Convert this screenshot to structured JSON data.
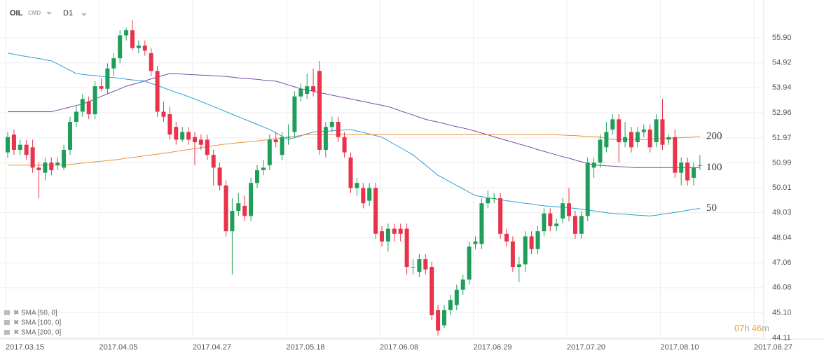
{
  "header": {
    "symbol": "OIL",
    "market": "CMD",
    "timeframe": "D1"
  },
  "timer": {
    "hours": "07",
    "h": "h",
    "minutes": "46",
    "m": "m"
  },
  "chart_data": {
    "type": "candlestick",
    "up_color": "#1e9e5a",
    "down_color": "#e8334a",
    "grid": true,
    "ylim": [
      43.79,
      57.39
    ],
    "yticks": [
      {
        "value": 55.9,
        "label": "55.90"
      },
      54.92,
      53.94,
      52.96,
      51.97,
      50.99,
      50.01,
      49.03,
      48.04,
      47.06,
      46.08,
      {
        "value": 45.1,
        "label": "45.10"
      },
      44.11
    ],
    "xticks": [
      {
        "value": 0,
        "label": "2017.03.15"
      },
      {
        "value": 15,
        "label": "2017.04.05"
      },
      {
        "value": 30,
        "label": "2017.04.27"
      },
      {
        "value": 45,
        "label": "2017.05.18"
      },
      {
        "value": 60,
        "label": "2017.06.08"
      },
      {
        "value": 75,
        "label": "2017.06.29"
      },
      {
        "value": 90,
        "label": "2017.07.20"
      },
      {
        "value": 105,
        "label": "2017.08.10"
      },
      {
        "value": 120,
        "label": "2017.08.27"
      }
    ],
    "candles": [
      [
        51.4,
        52.2,
        51.2,
        52.0
      ],
      [
        52.1,
        52.3,
        51.3,
        51.5
      ],
      [
        51.5,
        51.9,
        51.3,
        51.7
      ],
      [
        51.7,
        51.9,
        51.1,
        51.3
      ],
      [
        51.6,
        51.9,
        50.6,
        50.8
      ],
      [
        50.8,
        51.0,
        49.6,
        50.7
      ],
      [
        50.6,
        51.2,
        50.3,
        51.0
      ],
      [
        51.0,
        51.2,
        50.5,
        50.7
      ],
      [
        50.9,
        51.2,
        50.7,
        51.0
      ],
      [
        50.8,
        51.7,
        50.7,
        51.5
      ],
      [
        51.5,
        52.8,
        51.3,
        52.6
      ],
      [
        52.6,
        53.2,
        52.4,
        53.0
      ],
      [
        53.0,
        53.7,
        52.8,
        53.5
      ],
      [
        53.4,
        53.6,
        52.7,
        52.9
      ],
      [
        52.9,
        54.2,
        52.7,
        54.0
      ],
      [
        54.0,
        54.3,
        53.8,
        53.9
      ],
      [
        53.9,
        54.9,
        53.7,
        54.7
      ],
      [
        54.7,
        55.3,
        54.4,
        55.1
      ],
      [
        55.1,
        56.2,
        54.9,
        56.0
      ],
      [
        56.0,
        56.3,
        55.8,
        56.2
      ],
      [
        56.2,
        56.6,
        55.4,
        55.5
      ],
      [
        55.5,
        55.8,
        55.3,
        55.6
      ],
      [
        55.6,
        55.8,
        55.2,
        55.4
      ],
      [
        55.3,
        55.5,
        54.4,
        54.6
      ],
      [
        54.6,
        54.8,
        52.8,
        53.0
      ],
      [
        53.0,
        53.4,
        52.6,
        52.8
      ],
      [
        52.9,
        53.2,
        51.9,
        52.1
      ],
      [
        52.4,
        52.6,
        51.7,
        51.9
      ],
      [
        51.9,
        52.4,
        51.8,
        52.2
      ],
      [
        52.2,
        52.4,
        51.7,
        51.9
      ],
      [
        52.0,
        52.2,
        50.9,
        51.8
      ],
      [
        51.9,
        52.1,
        51.5,
        51.7
      ],
      [
        51.9,
        52.1,
        51.1,
        51.3
      ],
      [
        51.3,
        51.5,
        50.1,
        50.8
      ],
      [
        50.8,
        51.0,
        49.9,
        50.1
      ],
      [
        50.1,
        50.3,
        48.1,
        48.3
      ],
      [
        48.3,
        49.6,
        46.6,
        49.1
      ],
      [
        49.1,
        49.8,
        48.9,
        49.4
      ],
      [
        49.3,
        49.7,
        48.7,
        48.9
      ],
      [
        48.9,
        50.4,
        48.7,
        50.2
      ],
      [
        50.2,
        50.9,
        50.0,
        50.7
      ],
      [
        50.7,
        51.1,
        50.5,
        50.8
      ],
      [
        50.9,
        52.1,
        50.7,
        51.9
      ],
      [
        51.9,
        52.2,
        51.6,
        51.8
      ],
      [
        51.3,
        52.2,
        51.1,
        52.0
      ],
      [
        52.0,
        52.5,
        51.7,
        52.0
      ],
      [
        52.2,
        53.8,
        52.0,
        53.6
      ],
      [
        53.6,
        54.1,
        53.4,
        53.9
      ],
      [
        53.7,
        54.5,
        53.5,
        54.0
      ],
      [
        54.0,
        54.7,
        53.6,
        53.8
      ],
      [
        54.6,
        55.0,
        51.3,
        51.5
      ],
      [
        51.5,
        52.6,
        51.2,
        52.4
      ],
      [
        52.4,
        52.8,
        52.2,
        52.6
      ],
      [
        52.6,
        52.8,
        51.8,
        52.0
      ],
      [
        52.0,
        52.2,
        51.2,
        51.4
      ],
      [
        51.2,
        51.4,
        49.8,
        50.0
      ],
      [
        50.0,
        50.4,
        49.7,
        50.2
      ],
      [
        50.0,
        50.2,
        49.2,
        49.4
      ],
      [
        49.5,
        50.2,
        49.3,
        50.0
      ],
      [
        50.0,
        50.2,
        48.0,
        48.2
      ],
      [
        48.3,
        48.5,
        47.7,
        47.9
      ],
      [
        47.9,
        48.6,
        47.5,
        48.4
      ],
      [
        48.4,
        48.6,
        47.9,
        48.2
      ],
      [
        48.4,
        48.6,
        47.9,
        48.2
      ],
      [
        48.4,
        48.6,
        46.6,
        46.9
      ],
      [
        46.9,
        47.2,
        46.6,
        46.9
      ],
      [
        46.7,
        47.4,
        46.5,
        47.2
      ],
      [
        47.2,
        47.4,
        46.6,
        46.8
      ],
      [
        46.9,
        47.1,
        44.8,
        45.0
      ],
      [
        45.2,
        45.4,
        44.2,
        44.4
      ],
      [
        44.6,
        45.4,
        44.5,
        45.2
      ],
      [
        45.2,
        45.8,
        45.0,
        45.6
      ],
      [
        45.4,
        46.2,
        45.2,
        46.0
      ],
      [
        46.0,
        46.6,
        45.8,
        46.4
      ],
      [
        46.4,
        47.9,
        46.2,
        47.7
      ],
      [
        47.8,
        48.1,
        47.6,
        47.9
      ],
      [
        47.8,
        49.6,
        47.6,
        49.4
      ],
      [
        49.4,
        49.9,
        49.2,
        49.6
      ],
      [
        49.6,
        49.8,
        49.4,
        49.6
      ],
      [
        49.6,
        49.8,
        48.0,
        48.2
      ],
      [
        48.2,
        48.4,
        47.7,
        47.9
      ],
      [
        47.9,
        48.1,
        46.7,
        46.9
      ],
      [
        46.9,
        47.3,
        46.3,
        47.0
      ],
      [
        47.0,
        48.3,
        46.7,
        48.1
      ],
      [
        48.1,
        48.3,
        47.4,
        47.6
      ],
      [
        47.6,
        48.5,
        47.4,
        48.3
      ],
      [
        48.3,
        49.2,
        48.1,
        49.0
      ],
      [
        49.0,
        49.2,
        48.3,
        48.5
      ],
      [
        48.5,
        48.8,
        48.3,
        48.6
      ],
      [
        48.8,
        49.6,
        48.6,
        49.4
      ],
      [
        49.4,
        50.0,
        48.7,
        48.9
      ],
      [
        48.9,
        49.1,
        48.0,
        48.2
      ],
      [
        48.2,
        49.1,
        48.0,
        48.9
      ],
      [
        48.9,
        51.2,
        48.7,
        51.0
      ],
      [
        50.8,
        51.2,
        50.4,
        51.0
      ],
      [
        51.0,
        52.1,
        50.8,
        51.9
      ],
      [
        51.6,
        52.6,
        51.4,
        52.2
      ],
      [
        52.3,
        52.9,
        52.1,
        52.7
      ],
      [
        52.7,
        52.9,
        51.0,
        51.8
      ],
      [
        51.8,
        52.6,
        51.6,
        52.0
      ],
      [
        52.2,
        52.4,
        51.4,
        51.6
      ],
      [
        51.8,
        52.4,
        51.6,
        52.2
      ],
      [
        52.2,
        52.5,
        52.0,
        52.3
      ],
      [
        52.3,
        52.5,
        51.4,
        51.6
      ],
      [
        51.8,
        52.9,
        51.6,
        52.7
      ],
      [
        52.7,
        53.5,
        51.5,
        51.7
      ],
      [
        51.9,
        52.1,
        51.7,
        52.0
      ],
      [
        52.0,
        52.3,
        50.4,
        50.6
      ],
      [
        50.6,
        51.2,
        50.1,
        51.0
      ],
      [
        51.0,
        51.2,
        50.1,
        50.3
      ],
      [
        50.4,
        51.0,
        50.1,
        50.8
      ],
      [
        50.9,
        51.3,
        50.7,
        50.9
      ]
    ],
    "series": [
      {
        "name": "SMA [50, 0]",
        "label": "50",
        "color": "#2aa0d8",
        "values": [
          55.3,
          55.26,
          55.21,
          55.17,
          55.13,
          55.09,
          55.04,
          55.0,
          54.88,
          54.75,
          54.62,
          54.5,
          54.47,
          54.44,
          54.42,
          54.39,
          54.36,
          54.34,
          54.31,
          54.28,
          54.25,
          54.23,
          54.2,
          54.11,
          54.03,
          53.94,
          53.85,
          53.76,
          53.68,
          53.59,
          53.5,
          53.4,
          53.3,
          53.2,
          53.1,
          53.0,
          52.9,
          52.8,
          52.7,
          52.6,
          52.5,
          52.4,
          52.3,
          52.17,
          52.03,
          51.9,
          51.98,
          52.05,
          52.13,
          52.2,
          52.22,
          52.23,
          52.25,
          52.27,
          52.28,
          52.3,
          52.24,
          52.18,
          52.12,
          52.06,
          52.0,
          51.86,
          51.72,
          51.58,
          51.44,
          51.3,
          51.1,
          50.9,
          50.7,
          50.5,
          50.37,
          50.23,
          50.1,
          49.97,
          49.83,
          49.7,
          49.66,
          49.62,
          49.58,
          49.54,
          49.5,
          49.47,
          49.43,
          49.4,
          49.37,
          49.33,
          49.3,
          49.28,
          49.26,
          49.24,
          49.22,
          49.2,
          49.17,
          49.13,
          49.1,
          49.07,
          49.03,
          49.0,
          48.98,
          48.97,
          48.95,
          48.93,
          48.92,
          48.9,
          48.93,
          48.97,
          49.0,
          49.04,
          49.08,
          49.12,
          49.16,
          49.2
        ]
      },
      {
        "name": "SMA [100, 0]",
        "label": "100",
        "color": "#7b4aa8",
        "values": [
          53.0,
          53.0,
          53.0,
          53.0,
          53.0,
          53.0,
          53.0,
          53.0,
          53.06,
          53.12,
          53.18,
          53.24,
          53.3,
          53.4,
          53.5,
          53.6,
          53.7,
          53.8,
          53.9,
          54.0,
          54.07,
          54.14,
          54.21,
          54.29,
          54.36,
          54.43,
          54.5,
          54.49,
          54.48,
          54.46,
          54.45,
          54.44,
          54.43,
          54.41,
          54.4,
          54.38,
          54.36,
          54.33,
          54.31,
          54.29,
          54.27,
          54.24,
          54.22,
          54.2,
          54.13,
          54.05,
          53.98,
          53.9,
          53.85,
          53.8,
          53.75,
          53.7,
          53.65,
          53.6,
          53.55,
          53.5,
          53.45,
          53.4,
          53.35,
          53.3,
          53.25,
          53.2,
          53.12,
          53.03,
          52.95,
          52.87,
          52.78,
          52.7,
          52.64,
          52.59,
          52.53,
          52.47,
          52.41,
          52.36,
          52.3,
          52.23,
          52.16,
          52.09,
          52.01,
          51.94,
          51.87,
          51.8,
          51.73,
          51.66,
          51.59,
          51.51,
          51.44,
          51.37,
          51.3,
          51.23,
          51.17,
          51.1,
          51.03,
          50.97,
          50.9,
          50.89,
          50.87,
          50.86,
          50.84,
          50.83,
          50.81,
          50.8,
          50.8,
          50.8,
          50.8,
          50.8,
          50.8,
          50.8,
          50.8,
          50.8,
          50.8,
          50.8
        ]
      },
      {
        "name": "SMA [200, 0]",
        "label": "200",
        "color": "#e8913a",
        "values": [
          50.9,
          50.9,
          50.9,
          50.9,
          50.9,
          50.9,
          50.9,
          50.9,
          50.9,
          50.9,
          50.93,
          50.95,
          50.98,
          51.0,
          51.03,
          51.05,
          51.08,
          51.1,
          51.13,
          51.17,
          51.2,
          51.23,
          51.27,
          51.3,
          51.33,
          51.37,
          51.4,
          51.44,
          51.48,
          51.51,
          51.55,
          51.59,
          51.63,
          51.66,
          51.7,
          51.73,
          51.75,
          51.78,
          51.8,
          51.83,
          51.85,
          51.88,
          51.9,
          51.93,
          51.97,
          52.0,
          52.03,
          52.07,
          52.1,
          52.1,
          52.1,
          52.1,
          52.1,
          52.1,
          52.1,
          52.1,
          52.1,
          52.1,
          52.1,
          52.1,
          52.1,
          52.1,
          52.1,
          52.1,
          52.1,
          52.1,
          52.1,
          52.1,
          52.1,
          52.1,
          52.1,
          52.1,
          52.1,
          52.1,
          52.1,
          52.1,
          52.1,
          52.1,
          52.1,
          52.1,
          52.1,
          52.1,
          52.1,
          52.1,
          52.1,
          52.1,
          52.1,
          52.1,
          52.09,
          52.08,
          52.07,
          52.06,
          52.04,
          52.03,
          52.02,
          52.0,
          51.95,
          51.9,
          51.9,
          51.9,
          51.9,
          51.9,
          51.9,
          51.92,
          51.93,
          51.95,
          51.96,
          51.97,
          51.98,
          51.99,
          52.0,
          52.02
        ]
      }
    ]
  }
}
